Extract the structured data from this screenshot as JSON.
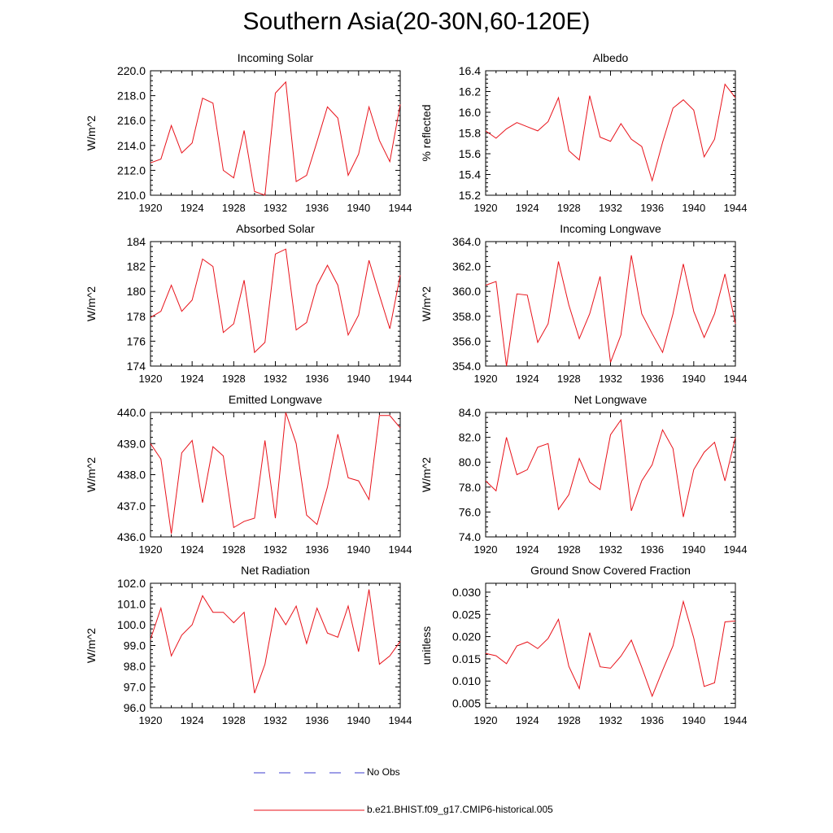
{
  "figure": {
    "title": "Southern Asia(20-30N,60-120E)",
    "line_color": "#e8121a",
    "obs_color": "#3c3ccf"
  },
  "legend": {
    "obs_label": "No Obs",
    "model_label": "b.e21.BHIST.f09_g17.CMIP6-historical.005"
  },
  "chart_data": [
    {
      "type": "line",
      "title": "Incoming Solar",
      "ylabel": "W/m^2",
      "xlim": [
        1920,
        1944
      ],
      "xticks": [
        1920,
        1924,
        1928,
        1932,
        1936,
        1940,
        1944
      ],
      "ylim": [
        210,
        220
      ],
      "yticks": [
        "210.0",
        "212.0",
        "214.0",
        "216.0",
        "218.0",
        "220.0"
      ],
      "x": [
        1920,
        1921,
        1922,
        1923,
        1924,
        1925,
        1926,
        1927,
        1928,
        1929,
        1930,
        1931,
        1932,
        1933,
        1934,
        1935,
        1936,
        1937,
        1938,
        1939,
        1940,
        1941,
        1942,
        1943,
        1944
      ],
      "values": [
        212.6,
        212.9,
        215.6,
        213.4,
        214.2,
        217.8,
        217.4,
        212.0,
        211.4,
        215.2,
        210.3,
        210.0,
        218.2,
        219.1,
        211.1,
        211.6,
        214.3,
        217.1,
        216.2,
        211.6,
        213.3,
        217.1,
        214.4,
        212.7,
        217.3
      ]
    },
    {
      "type": "line",
      "title": "Albedo",
      "ylabel": "% reflected",
      "xlim": [
        1920,
        1944
      ],
      "xticks": [
        1920,
        1924,
        1928,
        1932,
        1936,
        1940,
        1944
      ],
      "ylim": [
        15.2,
        16.4
      ],
      "yticks": [
        "15.2",
        "15.4",
        "15.6",
        "15.8",
        "16.0",
        "16.2",
        "16.4"
      ],
      "x": [
        1920,
        1921,
        1922,
        1923,
        1924,
        1925,
        1926,
        1927,
        1928,
        1929,
        1930,
        1931,
        1932,
        1933,
        1934,
        1935,
        1936,
        1937,
        1938,
        1939,
        1940,
        1941,
        1942,
        1943,
        1944
      ],
      "values": [
        15.82,
        15.75,
        15.84,
        15.9,
        15.86,
        15.82,
        15.91,
        16.14,
        15.63,
        15.54,
        16.16,
        15.76,
        15.72,
        15.89,
        15.74,
        15.67,
        15.34,
        15.71,
        16.04,
        16.12,
        16.02,
        15.57,
        15.74,
        16.27,
        16.14
      ]
    },
    {
      "type": "line",
      "title": "Absorbed Solar",
      "ylabel": "W/m^2",
      "xlim": [
        1920,
        1944
      ],
      "xticks": [
        1920,
        1924,
        1928,
        1932,
        1936,
        1940,
        1944
      ],
      "ylim": [
        174,
        184
      ],
      "yticks": [
        "174",
        "176",
        "178",
        "180",
        "182",
        "184"
      ],
      "x": [
        1920,
        1921,
        1922,
        1923,
        1924,
        1925,
        1926,
        1927,
        1928,
        1929,
        1930,
        1931,
        1932,
        1933,
        1934,
        1935,
        1936,
        1937,
        1938,
        1939,
        1940,
        1941,
        1942,
        1943,
        1944
      ],
      "values": [
        177.9,
        178.4,
        180.5,
        178.4,
        179.3,
        182.6,
        182.0,
        176.7,
        177.4,
        180.9,
        175.1,
        175.9,
        183.0,
        183.4,
        176.9,
        177.5,
        180.5,
        182.1,
        180.5,
        176.5,
        178.1,
        182.5,
        179.7,
        177.0,
        181.3
      ]
    },
    {
      "type": "line",
      "title": "Incoming Longwave",
      "ylabel": "W/m^2",
      "xlim": [
        1920,
        1944
      ],
      "xticks": [
        1920,
        1924,
        1928,
        1932,
        1936,
        1940,
        1944
      ],
      "ylim": [
        354,
        364
      ],
      "yticks": [
        "354.0",
        "356.0",
        "358.0",
        "360.0",
        "362.0",
        "364.0"
      ],
      "x": [
        1920,
        1921,
        1922,
        1923,
        1924,
        1925,
        1926,
        1927,
        1928,
        1929,
        1930,
        1931,
        1932,
        1933,
        1934,
        1935,
        1936,
        1937,
        1938,
        1939,
        1940,
        1941,
        1942,
        1943,
        1944
      ],
      "values": [
        360.5,
        360.8,
        354.0,
        359.8,
        359.7,
        355.9,
        357.4,
        362.4,
        358.9,
        356.2,
        358.2,
        361.2,
        354.3,
        356.5,
        362.9,
        358.2,
        356.6,
        355.1,
        358.2,
        362.2,
        358.4,
        356.3,
        358.2,
        361.4,
        357.4
      ]
    },
    {
      "type": "line",
      "title": "Emitted Longwave",
      "ylabel": "W/m^2",
      "xlim": [
        1920,
        1944
      ],
      "xticks": [
        1920,
        1924,
        1928,
        1932,
        1936,
        1940,
        1944
      ],
      "ylim": [
        436,
        440
      ],
      "yticks": [
        "436.0",
        "437.0",
        "438.0",
        "439.0",
        "440.0"
      ],
      "x": [
        1920,
        1921,
        1922,
        1923,
        1924,
        1925,
        1926,
        1927,
        1928,
        1929,
        1930,
        1931,
        1932,
        1933,
        1934,
        1935,
        1936,
        1937,
        1938,
        1939,
        1940,
        1941,
        1942,
        1943,
        1944
      ],
      "values": [
        439.0,
        438.5,
        436.1,
        438.7,
        439.1,
        437.1,
        438.9,
        438.6,
        436.3,
        436.5,
        436.6,
        439.1,
        436.6,
        440.0,
        439.0,
        436.7,
        436.4,
        437.6,
        439.3,
        437.9,
        437.8,
        437.2,
        439.9,
        439.9,
        439.5
      ]
    },
    {
      "type": "line",
      "title": "Net Longwave",
      "ylabel": "W/m^2",
      "xlim": [
        1920,
        1944
      ],
      "xticks": [
        1920,
        1924,
        1928,
        1932,
        1936,
        1940,
        1944
      ],
      "ylim": [
        74,
        84
      ],
      "yticks": [
        "74.0",
        "76.0",
        "78.0",
        "80.0",
        "82.0",
        "84.0"
      ],
      "x": [
        1920,
        1921,
        1922,
        1923,
        1924,
        1925,
        1926,
        1927,
        1928,
        1929,
        1930,
        1931,
        1932,
        1933,
        1934,
        1935,
        1936,
        1937,
        1938,
        1939,
        1940,
        1941,
        1942,
        1943,
        1944
      ],
      "values": [
        78.5,
        77.7,
        82.0,
        79.0,
        79.4,
        81.2,
        81.5,
        76.2,
        77.4,
        80.3,
        78.4,
        77.8,
        82.2,
        83.4,
        76.1,
        78.5,
        79.8,
        82.6,
        81.1,
        75.6,
        79.4,
        80.8,
        81.6,
        78.5,
        82.0
      ]
    },
    {
      "type": "line",
      "title": "Net Radiation",
      "ylabel": "W/m^2",
      "xlim": [
        1920,
        1944
      ],
      "xticks": [
        1920,
        1924,
        1928,
        1932,
        1936,
        1940,
        1944
      ],
      "ylim": [
        96,
        102
      ],
      "yticks": [
        "96.0",
        "97.0",
        "98.0",
        "99.0",
        "100.0",
        "101.0",
        "102.0"
      ],
      "x": [
        1920,
        1921,
        1922,
        1923,
        1924,
        1925,
        1926,
        1927,
        1928,
        1929,
        1930,
        1931,
        1932,
        1933,
        1934,
        1935,
        1936,
        1937,
        1938,
        1939,
        1940,
        1941,
        1942,
        1943,
        1944
      ],
      "values": [
        99.3,
        100.8,
        98.5,
        99.5,
        100.0,
        101.4,
        100.6,
        100.6,
        100.1,
        100.6,
        96.7,
        98.1,
        100.8,
        100.0,
        100.9,
        99.1,
        100.8,
        99.6,
        99.4,
        100.9,
        98.7,
        101.7,
        98.1,
        98.5,
        99.2
      ]
    },
    {
      "type": "line",
      "title": "Ground Snow Covered Fraction",
      "ylabel": "unitless",
      "xlim": [
        1920,
        1944
      ],
      "xticks": [
        1920,
        1924,
        1928,
        1932,
        1936,
        1940,
        1944
      ],
      "ylim": [
        0.004,
        0.032
      ],
      "yticks": [
        "0.005",
        "0.010",
        "0.015",
        "0.020",
        "0.025",
        "0.030"
      ],
      "x": [
        1920,
        1921,
        1922,
        1923,
        1924,
        1925,
        1926,
        1927,
        1928,
        1929,
        1930,
        1931,
        1932,
        1933,
        1934,
        1935,
        1936,
        1937,
        1938,
        1939,
        1940,
        1941,
        1942,
        1943,
        1944
      ],
      "values": [
        0.0162,
        0.0157,
        0.0139,
        0.0179,
        0.0188,
        0.0173,
        0.0196,
        0.0239,
        0.0133,
        0.0083,
        0.0209,
        0.0132,
        0.0129,
        0.0156,
        0.0192,
        0.0131,
        0.0066,
        0.0124,
        0.0179,
        0.0279,
        0.0197,
        0.0088,
        0.0096,
        0.0233,
        0.0235
      ]
    }
  ]
}
